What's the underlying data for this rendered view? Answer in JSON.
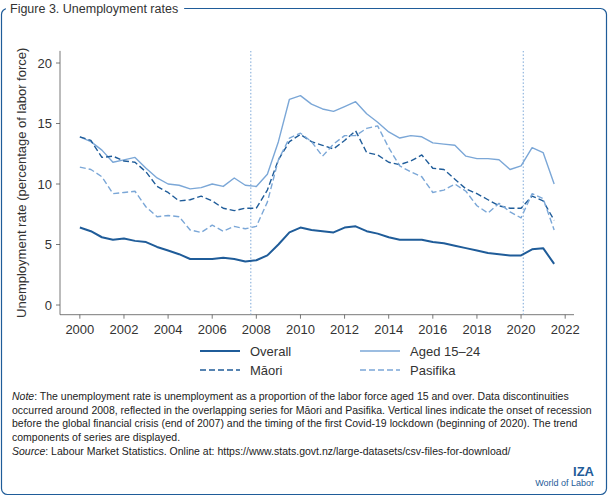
{
  "chart_data": {
    "type": "line",
    "title": "Figure 3. Unemployment rates",
    "y_label": "Unemployment rate (percentage of labor force)",
    "x": [
      2000,
      2000.5,
      2001,
      2001.5,
      2002,
      2002.5,
      2003,
      2003.5,
      2004,
      2004.5,
      2005,
      2005.5,
      2006,
      2006.5,
      2007,
      2007.5,
      2008,
      2008.5,
      2009,
      2009.5,
      2010,
      2010.5,
      2011,
      2011.5,
      2012,
      2012.5,
      2013,
      2013.5,
      2014,
      2014.5,
      2015,
      2015.5,
      2016,
      2016.5,
      2017,
      2017.5,
      2018,
      2018.5,
      2019,
      2019.5,
      2020,
      2020.5,
      2021,
      2021.5
    ],
    "series": [
      {
        "name": "Overall",
        "color": "#1f5c99",
        "line_style": "solid",
        "values": [
          6.4,
          6.1,
          5.6,
          5.4,
          5.5,
          5.3,
          5.2,
          4.8,
          4.5,
          4.2,
          3.8,
          3.8,
          3.8,
          3.9,
          3.8,
          3.6,
          3.7,
          4.1,
          5.0,
          6.0,
          6.4,
          6.2,
          6.1,
          6.0,
          6.4,
          6.5,
          6.1,
          5.9,
          5.6,
          5.4,
          5.4,
          5.4,
          5.2,
          5.1,
          4.9,
          4.7,
          4.5,
          4.3,
          4.2,
          4.1,
          4.1,
          4.6,
          4.7,
          3.4
        ]
      },
      {
        "name": "Aged 15–24",
        "color": "#7ba7d7",
        "line_style": "solid",
        "values": [
          13.9,
          13.5,
          12.8,
          11.8,
          12.0,
          12.2,
          11.3,
          10.5,
          10.0,
          9.9,
          9.6,
          9.7,
          10.0,
          9.8,
          10.5,
          9.9,
          9.8,
          10.8,
          13.5,
          17.0,
          17.3,
          16.6,
          16.2,
          16.0,
          16.4,
          16.8,
          15.8,
          15.1,
          14.3,
          13.8,
          14.0,
          13.9,
          13.4,
          13.3,
          13.2,
          12.3,
          12.1,
          12.1,
          12.0,
          11.2,
          11.5,
          13.0,
          12.6,
          10.0
        ]
      },
      {
        "name": "Māori",
        "color": "#1f5c99",
        "line_style": "dashed",
        "values": [
          13.9,
          13.6,
          12.2,
          12.3,
          11.9,
          11.8,
          11.0,
          9.8,
          9.3,
          8.6,
          8.7,
          9.0,
          8.6,
          8.0,
          7.8,
          8.0,
          8.0,
          9.5,
          12.0,
          13.5,
          14.1,
          13.5,
          13.2,
          12.9,
          13.6,
          14.4,
          12.6,
          12.4,
          11.8,
          11.6,
          11.9,
          12.4,
          11.3,
          11.2,
          10.4,
          9.6,
          9.2,
          8.7,
          8.2,
          8.0,
          8.0,
          9.0,
          8.6,
          7.0
        ]
      },
      {
        "name": "Pasifika",
        "color": "#7ba7d7",
        "line_style": "dashed",
        "values": [
          11.4,
          11.2,
          10.6,
          9.2,
          9.3,
          9.4,
          8.1,
          7.3,
          7.4,
          7.3,
          6.2,
          6.0,
          6.6,
          6.1,
          6.5,
          6.3,
          6.5,
          8.5,
          12.0,
          13.8,
          14.2,
          13.5,
          12.3,
          13.3,
          14.0,
          14.0,
          14.6,
          14.8,
          13.0,
          11.5,
          11.0,
          10.6,
          9.3,
          9.5,
          10.0,
          9.4,
          8.2,
          7.6,
          8.4,
          7.7,
          7.2,
          9.2,
          8.8,
          6.2
        ]
      }
    ],
    "xlim": [
      1999.1,
      2022.4
    ],
    "xticks": [
      2000,
      2002,
      2004,
      2006,
      2008,
      2010,
      2012,
      2014,
      2016,
      2018,
      2020,
      2022
    ],
    "ylim": [
      -0.8,
      21
    ],
    "yticks": [
      0,
      5,
      10,
      15,
      20
    ],
    "vlines": [
      2007.75,
      2020.1
    ],
    "grid": false,
    "legend": "bottom",
    "note": "Note: The unemployment rate is unemployment as a proportion of the labor force aged 15 and over. Data discontinuities occurred around 2008, reflected in the overlapping series for Māori and Pasifika. Vertical lines indicate the onset of recession before the global financial crisis (end of 2007) and the timing of the first Covid-19 lockdown (beginning of 2020). The trend components of series are displayed.",
    "source": "Source: Labour Market Statistics. Online at: https://www.stats.govt.nz/large-datasets/csv-files-for-download/",
    "logo": [
      "IZA",
      "World of Labor"
    ]
  }
}
